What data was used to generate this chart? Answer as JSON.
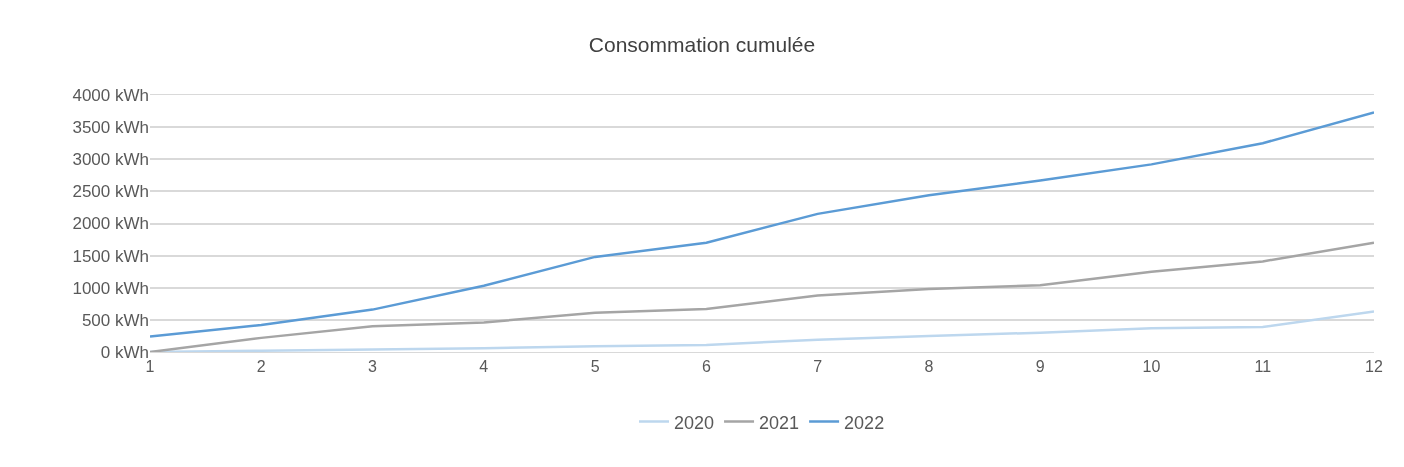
{
  "chart_data": {
    "type": "line",
    "title": "Consommation cumulée",
    "categories": [
      "1",
      "2",
      "3",
      "4",
      "5",
      "6",
      "7",
      "8",
      "9",
      "10",
      "11",
      "12"
    ],
    "series": [
      {
        "name": "2020",
        "color": "#bdd7ee",
        "values": [
          0,
          20,
          40,
          60,
          90,
          110,
          190,
          250,
          300,
          370,
          390,
          630
        ]
      },
      {
        "name": "2021",
        "color": "#a5a5a5",
        "values": [
          0,
          220,
          400,
          460,
          610,
          670,
          880,
          980,
          1040,
          1250,
          1410,
          1700
        ]
      },
      {
        "name": "2022",
        "color": "#5b9bd5",
        "values": [
          240,
          420,
          660,
          1030,
          1480,
          1700,
          2150,
          2440,
          2670,
          2920,
          3250,
          3730
        ]
      }
    ],
    "ylim": [
      0,
      4000
    ],
    "yticks": [
      {
        "value": 0,
        "label": "0 kWh"
      },
      {
        "value": 500,
        "label": "500 kWh"
      },
      {
        "value": 1000,
        "label": "1000 kWh"
      },
      {
        "value": 1500,
        "label": "1500 kWh"
      },
      {
        "value": 2000,
        "label": "2000 kWh"
      },
      {
        "value": 2500,
        "label": "2500 kWh"
      },
      {
        "value": 3000,
        "label": "3000 kWh"
      },
      {
        "value": 3500,
        "label": "3500 kWh"
      },
      {
        "value": 4000,
        "label": "4000 kWh"
      }
    ],
    "grid": "y",
    "legend": "bottom",
    "marker": "none",
    "line_style": "solid"
  }
}
